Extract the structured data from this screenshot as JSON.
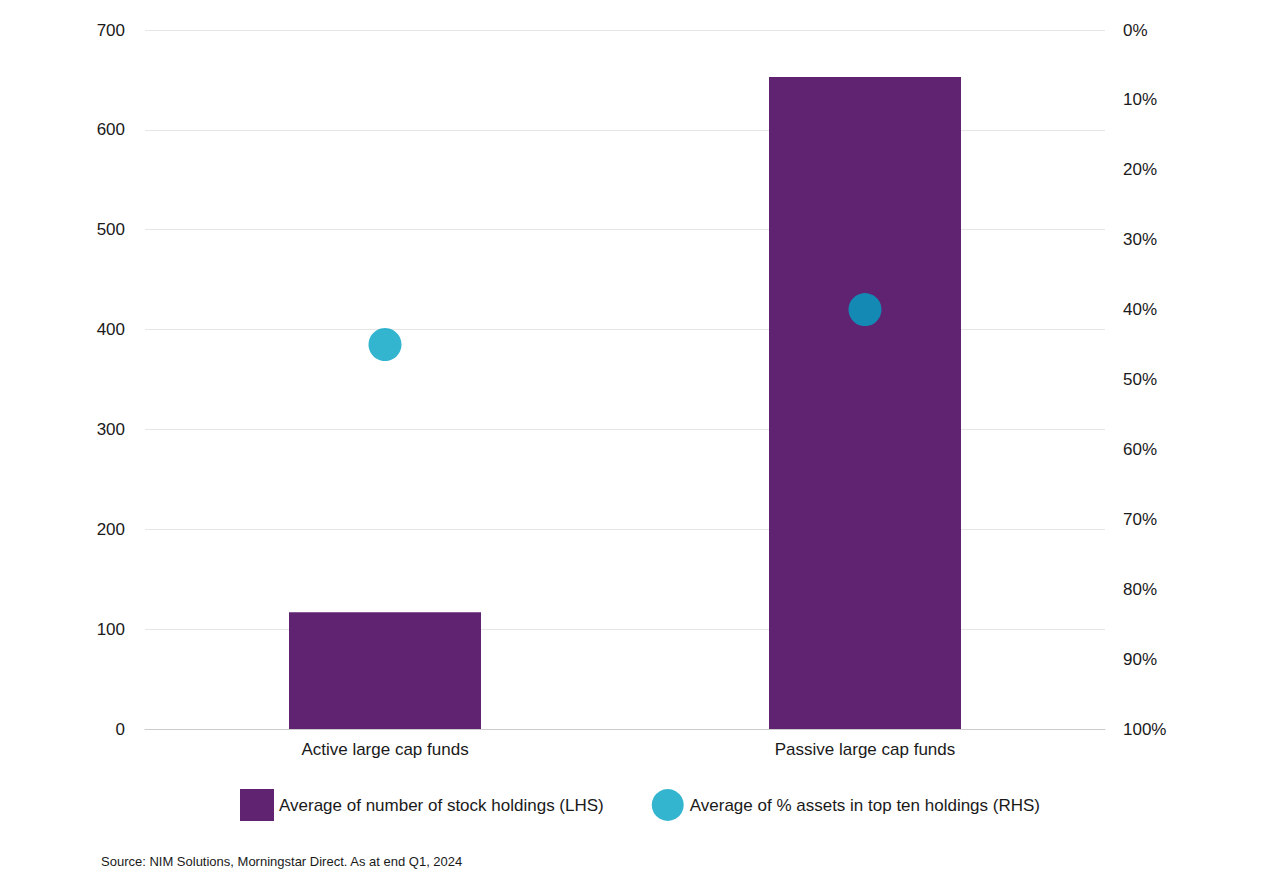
{
  "chart_data": {
    "type": "bar",
    "source": "Source: NIM Solutions, Morningstar Direct. As at end Q1, 2024",
    "categories": [
      "Active large cap funds",
      "Passive large cap funds"
    ],
    "series": [
      {
        "name": "Average of number of stock holdings (LHS)",
        "type": "bar",
        "color": "#5f2372",
        "values": [
          117,
          653
        ]
      },
      {
        "name": "Average of % assets in top ten holdings (RHS)",
        "type": "scatter",
        "marker": "circle",
        "color": "#00a3c4",
        "axis": "y2",
        "values": [
          45,
          40
        ]
      }
    ],
    "ylim": [
      0,
      700
    ],
    "yticks": [
      0,
      100,
      200,
      300,
      400,
      500,
      600,
      700
    ],
    "y2lim": [
      0,
      100
    ],
    "y2ticks": [
      {
        "value": 0,
        "label": "0%"
      },
      {
        "value": 10,
        "label": "10%"
      },
      {
        "value": 20,
        "label": "20%"
      },
      {
        "value": 30,
        "label": "30%"
      },
      {
        "value": 40,
        "label": "40%"
      },
      {
        "value": 50,
        "label": "50%"
      },
      {
        "value": 60,
        "label": "60%"
      },
      {
        "value": 70,
        "label": "70%"
      },
      {
        "value": 80,
        "label": "80%"
      },
      {
        "value": 90,
        "label": "90%"
      },
      {
        "value": 100,
        "label": "100%"
      }
    ],
    "grid": true,
    "legend": "bottom"
  }
}
